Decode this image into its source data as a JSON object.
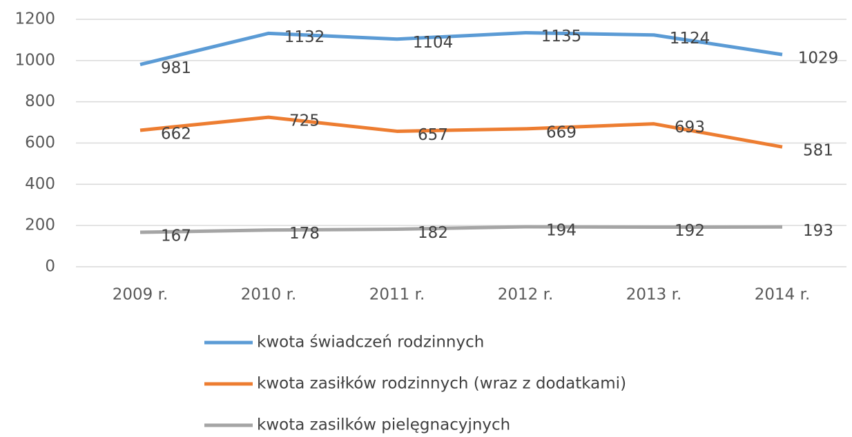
{
  "chart_data": {
    "type": "line",
    "categories": [
      "2009 r.",
      "2010 r.",
      "2011 r.",
      "2012 r.",
      "2013 r.",
      "2014 r."
    ],
    "series": [
      {
        "name": "kwota świadczeń rodzinnych",
        "color": "#5b9bd5",
        "values": [
          981,
          1132,
          1104,
          1135,
          1124,
          1029
        ]
      },
      {
        "name": "kwota zasiłków rodzinnych (wraz z dodatkami)",
        "color": "#ed7d31",
        "values": [
          662,
          725,
          657,
          669,
          693,
          581
        ]
      },
      {
        "name": "kwota zasilków pielęgnacyjnych",
        "color": "#a5a5a5",
        "values": [
          167,
          178,
          182,
          194,
          192,
          193
        ]
      }
    ],
    "ylim": [
      0,
      1200
    ],
    "yticks": [
      0,
      200,
      400,
      600,
      800,
      1000,
      1200
    ],
    "grid": true,
    "legend": "bottom"
  }
}
